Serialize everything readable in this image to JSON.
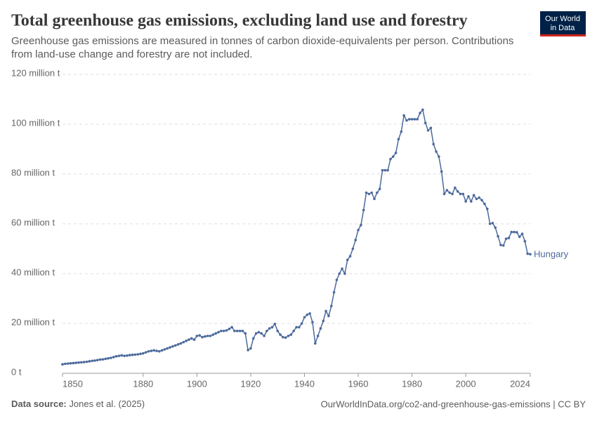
{
  "chart_data": {
    "type": "line",
    "title": "Total greenhouse gas emissions, excluding land use and forestry",
    "subtitle": [
      "Greenhouse gas emissions are measured in tonnes of carbon dioxide-equivalents per person. Contributions",
      "from land-use change and forestry are not included."
    ],
    "logo": [
      "Our World",
      "in Data"
    ],
    "source_label": "Data source:",
    "source": "Jones et al. (2025)",
    "url": "OurWorldInData.org/co2-and-greenhouse-gas-emissions | CC BY",
    "x": [
      1850,
      1851,
      1852,
      1853,
      1854,
      1855,
      1856,
      1857,
      1858,
      1859,
      1860,
      1861,
      1862,
      1863,
      1864,
      1865,
      1866,
      1867,
      1868,
      1869,
      1870,
      1871,
      1872,
      1873,
      1874,
      1875,
      1876,
      1877,
      1878,
      1879,
      1880,
      1881,
      1882,
      1883,
      1884,
      1885,
      1886,
      1887,
      1888,
      1889,
      1890,
      1891,
      1892,
      1893,
      1894,
      1895,
      1896,
      1897,
      1898,
      1899,
      1900,
      1901,
      1902,
      1903,
      1904,
      1905,
      1906,
      1907,
      1908,
      1909,
      1910,
      1911,
      1912,
      1913,
      1914,
      1915,
      1916,
      1917,
      1918,
      1919,
      1920,
      1921,
      1922,
      1923,
      1924,
      1925,
      1926,
      1927,
      1928,
      1929,
      1930,
      1931,
      1932,
      1933,
      1934,
      1935,
      1936,
      1937,
      1938,
      1939,
      1940,
      1941,
      1942,
      1943,
      1944,
      1945,
      1946,
      1947,
      1948,
      1949,
      1950,
      1951,
      1952,
      1953,
      1954,
      1955,
      1956,
      1957,
      1958,
      1959,
      1960,
      1961,
      1962,
      1963,
      1964,
      1965,
      1966,
      1967,
      1968,
      1969,
      1970,
      1971,
      1972,
      1973,
      1974,
      1975,
      1976,
      1977,
      1978,
      1979,
      1980,
      1981,
      1982,
      1983,
      1984,
      1985,
      1986,
      1987,
      1988,
      1989,
      1990,
      1991,
      1992,
      1993,
      1994,
      1995,
      1996,
      1997,
      1998,
      1999,
      2000,
      2001,
      2002,
      2003,
      2004,
      2005,
      2006,
      2007,
      2008,
      2009,
      2010,
      2011,
      2012,
      2013,
      2014,
      2015,
      2016,
      2017,
      2018,
      2019,
      2020,
      2021,
      2022,
      2023,
      2024
    ],
    "series": [
      {
        "name": "Hungary",
        "color": "#4c6a9c",
        "values": [
          3.6,
          3.8,
          3.9,
          4.0,
          4.1,
          4.2,
          4.3,
          4.4,
          4.5,
          4.6,
          4.8,
          5.0,
          5.1,
          5.3,
          5.5,
          5.6,
          5.8,
          6.0,
          6.2,
          6.5,
          6.8,
          7.0,
          7.2,
          7.0,
          7.1,
          7.3,
          7.4,
          7.5,
          7.6,
          7.8,
          8.0,
          8.4,
          8.8,
          9.0,
          9.2,
          9.0,
          8.8,
          9.2,
          9.6,
          10.0,
          10.4,
          10.8,
          11.2,
          11.6,
          12.0,
          12.5,
          13.0,
          13.5,
          14.0,
          13.5,
          15.0,
          15.2,
          14.5,
          14.8,
          15.0,
          15.0,
          15.5,
          16.0,
          16.5,
          17.0,
          17.0,
          17.2,
          17.8,
          18.5,
          17.0,
          17.0,
          17.0,
          17.0,
          16.0,
          9.3,
          10,
          14,
          16,
          16.5,
          16,
          15,
          17,
          18,
          18.5,
          19.8,
          17,
          15.5,
          14.5,
          14.3,
          15,
          15.5,
          17,
          18.5,
          18.5,
          20,
          22.5,
          23.5,
          24,
          20.5,
          12,
          15,
          18,
          21,
          25,
          23,
          27,
          32.5,
          37.5,
          40,
          42,
          40,
          45.5,
          47,
          50,
          53.5,
          57.5,
          59.5,
          65.5,
          72.5,
          72,
          72.5,
          70,
          72.5,
          74,
          81.5,
          81.5,
          81.5,
          86,
          87,
          88.5,
          94,
          97,
          103.5,
          101.5,
          102,
          102,
          102,
          102,
          104.5,
          105.8,
          100.5,
          97.5,
          98.5,
          92,
          89,
          87,
          81,
          72,
          73.5,
          72.5,
          72,
          74.5,
          73,
          72,
          72,
          69,
          71,
          69,
          71.5,
          70,
          70.5,
          69.5,
          68,
          66,
          60,
          60.3,
          58.5,
          55,
          51.5,
          51.3,
          54,
          54.3,
          56.7,
          56.7,
          56.6,
          54.8,
          56,
          53,
          48,
          47.8
        ]
      }
    ],
    "xlim": [
      1850,
      2024
    ],
    "xticks": [
      1850,
      1880,
      1900,
      1920,
      1940,
      1960,
      1980,
      2000,
      2024
    ],
    "ylim": [
      0,
      120
    ],
    "yticks": [
      {
        "value": 0,
        "label": "0 t"
      },
      {
        "value": 20,
        "label": "20 million t"
      },
      {
        "value": 40,
        "label": "40 million t"
      },
      {
        "value": 60,
        "label": "60 million t"
      },
      {
        "value": 80,
        "label": "80 million t"
      },
      {
        "value": 100,
        "label": "100 million t"
      },
      {
        "value": 120,
        "label": "120 million t"
      }
    ],
    "grid": true
  }
}
